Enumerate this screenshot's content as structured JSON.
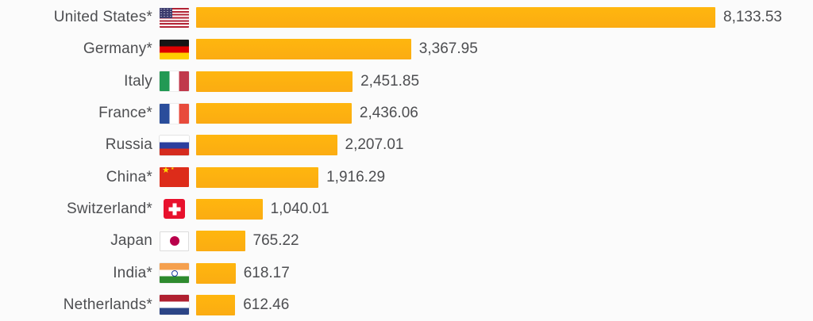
{
  "chart_data": {
    "type": "bar",
    "orientation": "horizontal",
    "title": "",
    "xlabel": "",
    "ylabel": "",
    "xlim": [
      0,
      8800
    ],
    "grid": false,
    "legend": false,
    "bar_color": "#FBB116",
    "label_color": "#4D4E51",
    "categories": [
      "United States*",
      "Germany*",
      "Italy",
      "France*",
      "Russia",
      "China*",
      "Switzerland*",
      "Japan",
      "India*",
      "Netherlands*"
    ],
    "values": [
      8133.53,
      3367.95,
      2451.85,
      2436.06,
      2207.01,
      1916.29,
      1040.01,
      765.22,
      618.17,
      612.46
    ],
    "value_labels": [
      "8,133.53",
      "3,367.95",
      "2,451.85",
      "2,436.06",
      "2,207.01",
      "1,916.29",
      "1,040.01",
      "765.22",
      "618.17",
      "612.46"
    ],
    "flag_icons": [
      "us-flag-icon",
      "de-flag-icon",
      "it-flag-icon",
      "fr-flag-icon",
      "ru-flag-icon",
      "cn-flag-icon",
      "ch-flag-icon",
      "jp-flag-icon",
      "in-flag-icon",
      "nl-flag-icon"
    ],
    "flag_codes": [
      "us",
      "de",
      "it",
      "fr",
      "ru",
      "cn",
      "ch",
      "jp",
      "in",
      "nl"
    ]
  }
}
